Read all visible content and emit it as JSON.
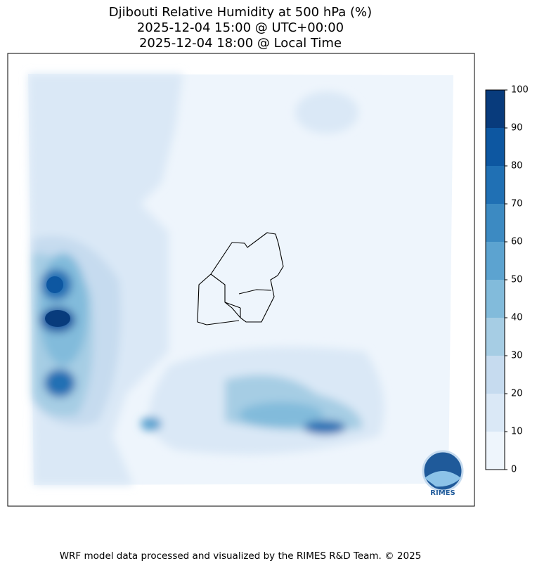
{
  "title": [
    "Djibouti Relative Humidity at 500 hPa (%)",
    "2025-12-04 15:00 @ UTC+00:00",
    "2025-12-04 18:00 @ Local Time"
  ],
  "colorbar": {
    "lim": [
      0,
      100
    ],
    "ticks": [
      0,
      10,
      20,
      30,
      40,
      50,
      60,
      70,
      80,
      90,
      100
    ],
    "colors": [
      "#eef5fc",
      "#dae8f6",
      "#c6dbef",
      "#a6cde4",
      "#82bbdb",
      "#5ca3d0",
      "#3c8ac2",
      "#2070b4",
      "#0d57a1",
      "#083b7c"
    ]
  },
  "logo": "RIMES",
  "footer": "WRF model data processed and visualized by the RIMES R&D Team. © 2025"
}
